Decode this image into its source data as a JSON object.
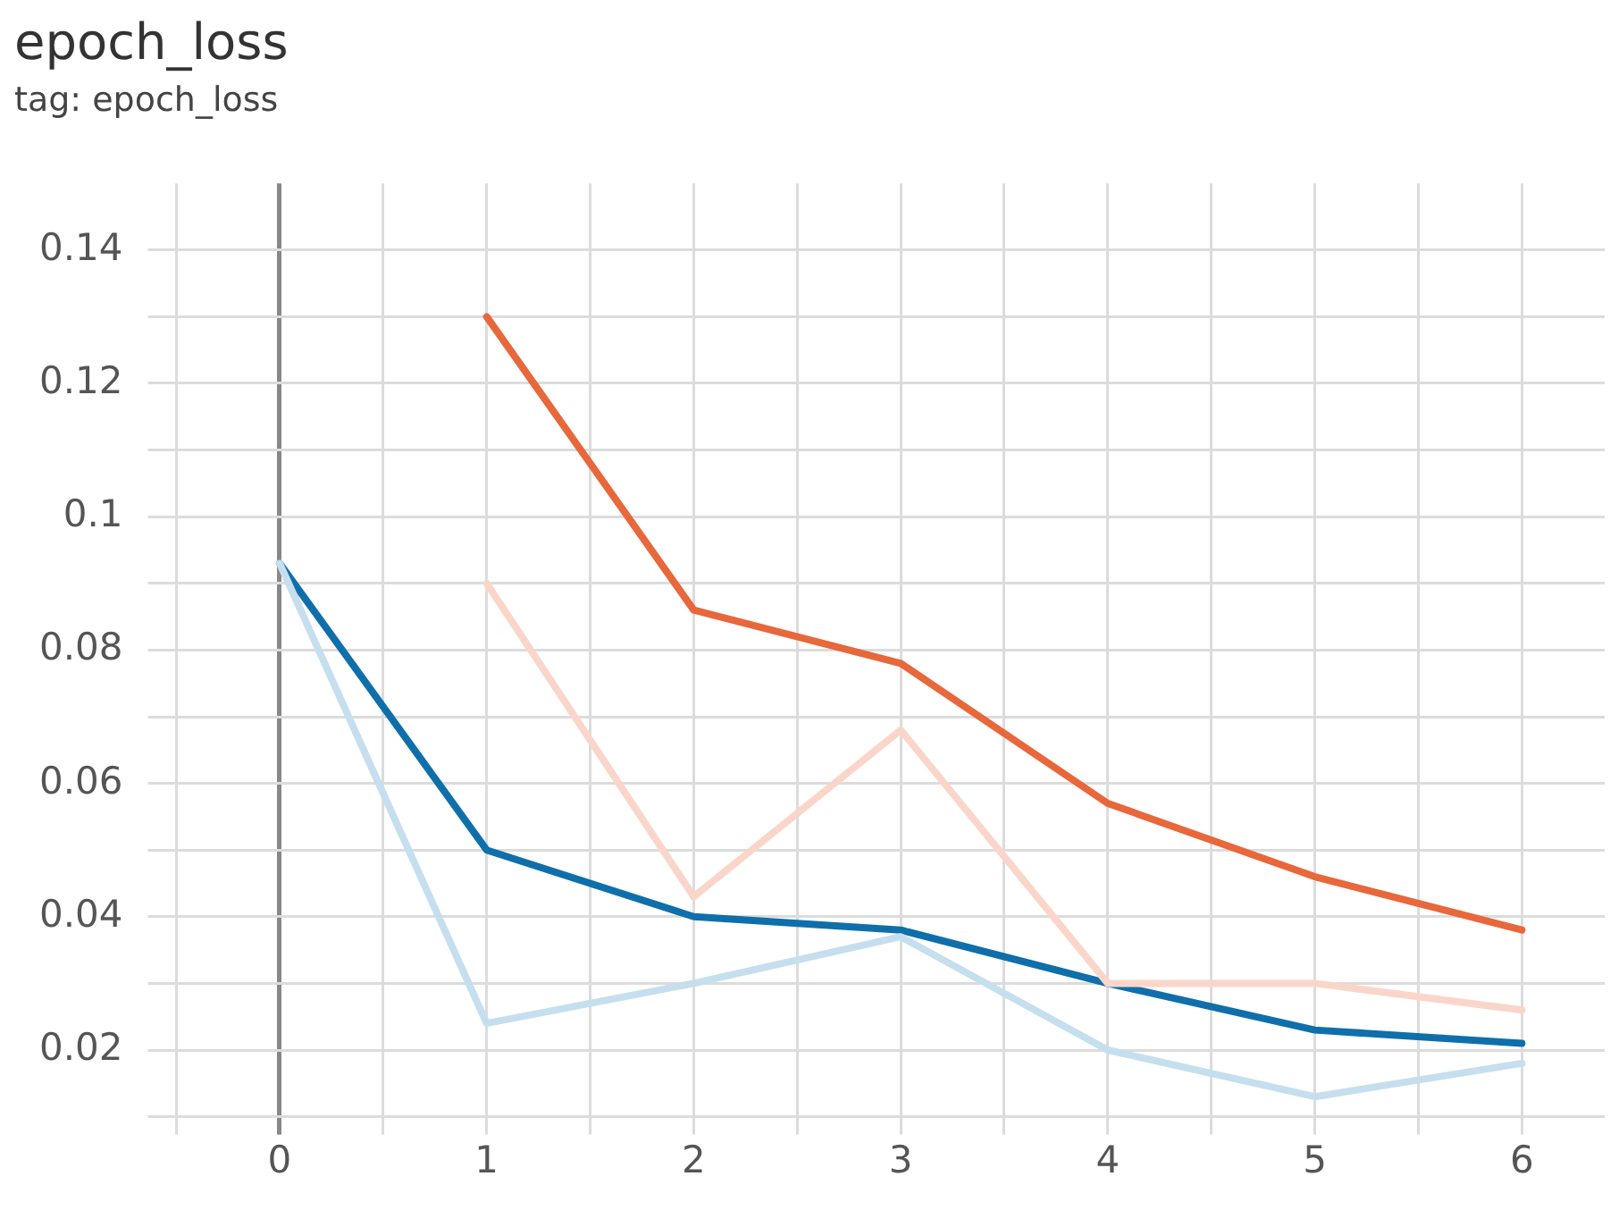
{
  "chart_data": {
    "type": "line",
    "title": "epoch_loss",
    "subtitle": "tag: epoch_loss",
    "x": [
      0,
      1,
      2,
      3,
      4,
      5,
      6
    ],
    "series": [
      {
        "color": "#fad6ca",
        "values": [
          null,
          0.09,
          0.043,
          0.068,
          0.03,
          0.03,
          0.026
        ]
      },
      {
        "color": "#c6dfee",
        "values": [
          0.093,
          0.024,
          0.03,
          0.037,
          0.02,
          0.013,
          0.018
        ]
      },
      {
        "color": "#e8673b",
        "values": [
          null,
          0.13,
          0.086,
          0.078,
          0.057,
          0.046,
          0.038
        ]
      },
      {
        "color": "#0f6fab",
        "values": [
          0.093,
          0.05,
          0.04,
          0.038,
          0.03,
          0.023,
          0.021
        ]
      }
    ],
    "xlim": [
      -0.55,
      6.4
    ],
    "xticks": [
      {
        "value": -0.5,
        "label": null
      },
      0,
      {
        "value": 0.5,
        "label": null
      },
      1,
      {
        "value": 1.5,
        "label": null
      },
      2,
      {
        "value": 2.5,
        "label": null
      },
      3,
      {
        "value": 3.5,
        "label": null
      },
      4,
      {
        "value": 4.5,
        "label": null
      },
      5,
      {
        "value": 5.5,
        "label": null
      },
      6
    ],
    "ylim": [
      0.01,
      0.15
    ],
    "yticks": [
      {
        "value": 0.01,
        "label": null
      },
      0.02,
      {
        "value": 0.03,
        "label": null
      },
      0.04,
      {
        "value": 0.05,
        "label": null
      },
      0.06,
      {
        "value": 0.07,
        "label": null
      },
      0.08,
      {
        "value": 0.09,
        "label": null
      },
      0.1,
      {
        "value": 0.11,
        "label": null
      },
      0.12,
      {
        "value": 0.13,
        "label": null
      },
      0.14
    ],
    "grid": true,
    "legend": false,
    "line_style": "solid",
    "marker": "none"
  }
}
